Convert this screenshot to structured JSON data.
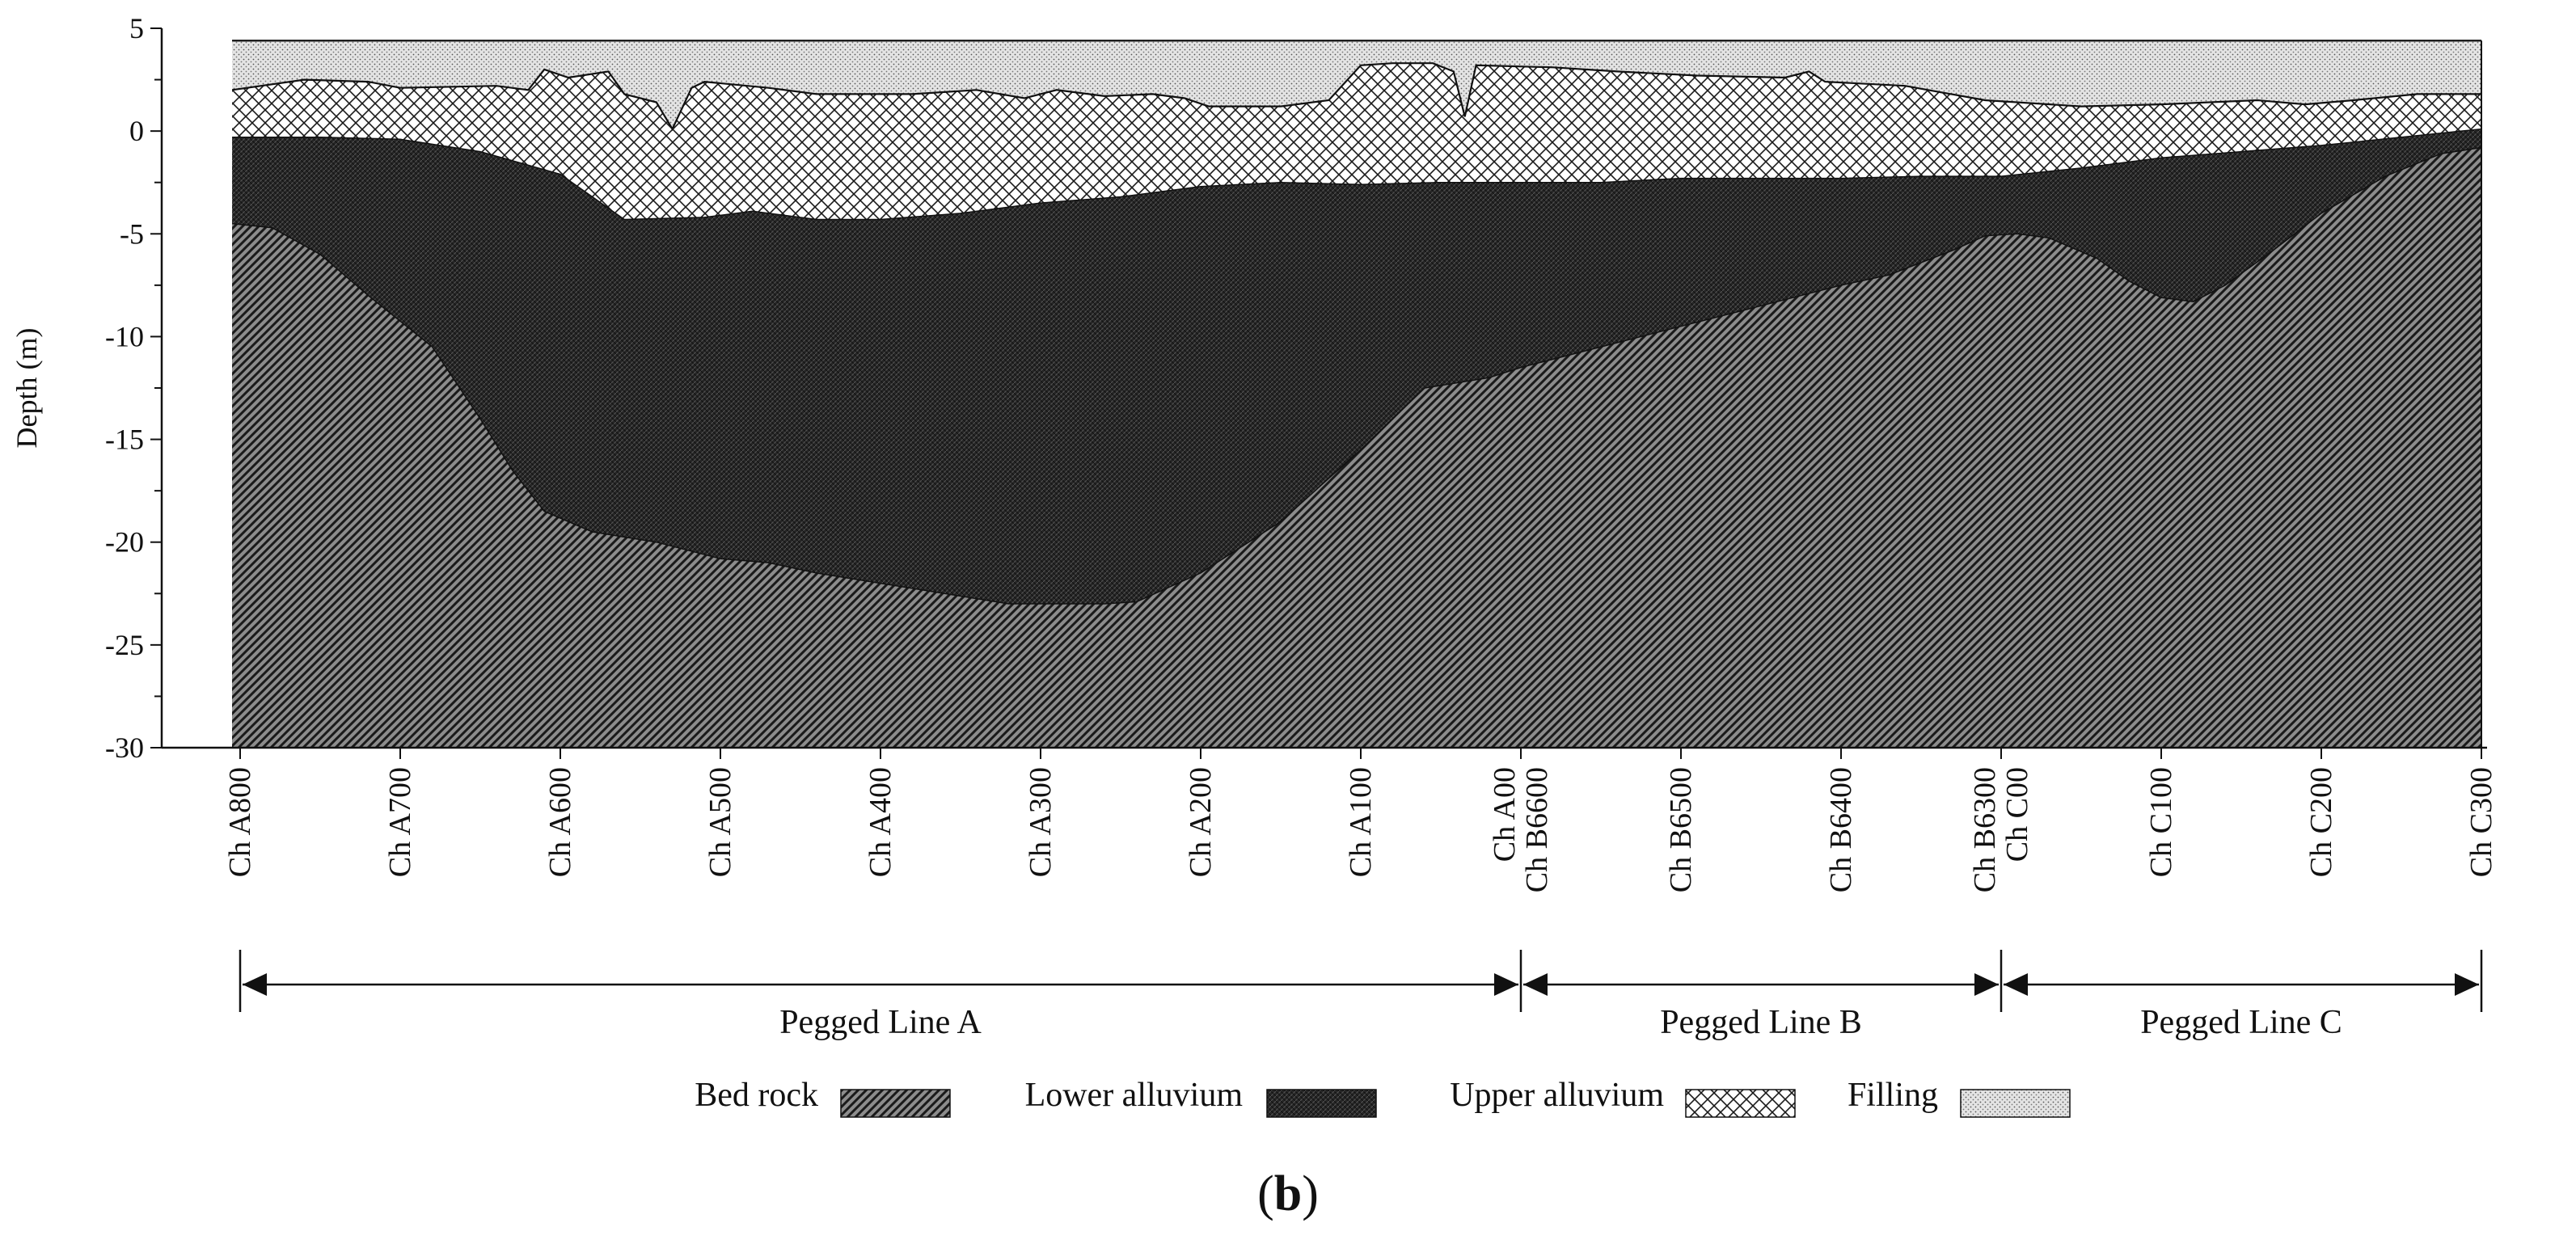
{
  "chart_data": {
    "type": "area",
    "title": "",
    "xlabel": "",
    "ylabel": "Depth (m)",
    "ylim": [
      -30,
      5
    ],
    "ytick_step": 5,
    "y_minor_step": 2.5,
    "xlim": [
      0,
      1400
    ],
    "x_ticks": [
      {
        "x": 0,
        "labels": [
          "Ch A800"
        ]
      },
      {
        "x": 100,
        "labels": [
          "Ch A700"
        ]
      },
      {
        "x": 200,
        "labels": [
          "Ch A600"
        ]
      },
      {
        "x": 300,
        "labels": [
          "Ch A500"
        ]
      },
      {
        "x": 400,
        "labels": [
          "Ch A400"
        ]
      },
      {
        "x": 500,
        "labels": [
          "Ch A300"
        ]
      },
      {
        "x": 600,
        "labels": [
          "Ch A200"
        ]
      },
      {
        "x": 700,
        "labels": [
          "Ch A100"
        ]
      },
      {
        "x": 800,
        "labels": [
          "Ch A00",
          "Ch B6600"
        ]
      },
      {
        "x": 900,
        "labels": [
          "Ch B6500"
        ]
      },
      {
        "x": 1000,
        "labels": [
          "Ch B6400"
        ]
      },
      {
        "x": 1100,
        "labels": [
          "Ch B6300",
          "Ch C00"
        ]
      },
      {
        "x": 1200,
        "labels": [
          "Ch C100"
        ]
      },
      {
        "x": 1300,
        "labels": [
          "Ch C200"
        ]
      },
      {
        "x": 1400,
        "labels": [
          "Ch C300"
        ]
      }
    ],
    "layers": [
      {
        "name": "Filling",
        "boundary": "top_of_filling",
        "fill": "#dcdcdc",
        "pattern": "dots"
      },
      {
        "name": "Upper alluvium",
        "boundary": "top_of_upper_alluvium",
        "fill": "#ffffff",
        "pattern": "crosshatch"
      },
      {
        "name": "Lower alluvium",
        "boundary": "top_of_lower_alluvium",
        "fill": "#262626",
        "pattern": "dense"
      },
      {
        "name": "Bed rock",
        "boundary": "top_of_bed_rock",
        "fill": "#8c8c8c",
        "pattern": "diagonal"
      }
    ],
    "boundaries": {
      "top_of_filling": [
        [
          -5,
          4.4
        ],
        [
          1400,
          4.4
        ]
      ],
      "top_of_upper_alluvium": [
        [
          -5,
          2
        ],
        [
          40,
          2.5
        ],
        [
          80,
          2.4
        ],
        [
          100,
          2.1
        ],
        [
          160,
          2.2
        ],
        [
          180,
          2.0
        ],
        [
          190,
          3.0
        ],
        [
          205,
          2.6
        ],
        [
          230,
          2.9
        ],
        [
          240,
          1.8
        ],
        [
          260,
          1.4
        ],
        [
          270,
          0.1
        ],
        [
          282,
          2.1
        ],
        [
          290,
          2.4
        ],
        [
          330,
          2.1
        ],
        [
          360,
          1.8
        ],
        [
          420,
          1.8
        ],
        [
          460,
          2.0
        ],
        [
          490,
          1.6
        ],
        [
          510,
          2.0
        ],
        [
          540,
          1.7
        ],
        [
          570,
          1.8
        ],
        [
          590,
          1.6
        ],
        [
          605,
          1.2
        ],
        [
          650,
          1.2
        ],
        [
          680,
          1.5
        ],
        [
          700,
          3.2
        ],
        [
          720,
          3.3
        ],
        [
          745,
          3.3
        ],
        [
          758,
          2.9
        ],
        [
          765,
          0.7
        ],
        [
          772,
          3.2
        ],
        [
          820,
          3.1
        ],
        [
          860,
          2.9
        ],
        [
          910,
          2.7
        ],
        [
          965,
          2.6
        ],
        [
          980,
          2.9
        ],
        [
          990,
          2.4
        ],
        [
          1040,
          2.2
        ],
        [
          1090,
          1.5
        ],
        [
          1150,
          1.2
        ],
        [
          1200,
          1.3
        ],
        [
          1260,
          1.5
        ],
        [
          1290,
          1.3
        ],
        [
          1320,
          1.5
        ],
        [
          1360,
          1.8
        ],
        [
          1400,
          1.8
        ]
      ],
      "top_of_lower_alluvium": [
        [
          -5,
          -0.3
        ],
        [
          50,
          -0.3
        ],
        [
          100,
          -0.4
        ],
        [
          150,
          -1.0
        ],
        [
          200,
          -2.1
        ],
        [
          220,
          -3.2
        ],
        [
          240,
          -4.3
        ],
        [
          290,
          -4.2
        ],
        [
          320,
          -3.9
        ],
        [
          360,
          -4.3
        ],
        [
          400,
          -4.3
        ],
        [
          450,
          -4.0
        ],
        [
          500,
          -3.5
        ],
        [
          550,
          -3.2
        ],
        [
          600,
          -2.7
        ],
        [
          650,
          -2.5
        ],
        [
          700,
          -2.6
        ],
        [
          750,
          -2.5
        ],
        [
          800,
          -2.5
        ],
        [
          850,
          -2.5
        ],
        [
          900,
          -2.3
        ],
        [
          950,
          -2.3
        ],
        [
          1000,
          -2.3
        ],
        [
          1050,
          -2.2
        ],
        [
          1100,
          -2.2
        ],
        [
          1150,
          -1.8
        ],
        [
          1200,
          -1.3
        ],
        [
          1250,
          -1.0
        ],
        [
          1300,
          -0.7
        ],
        [
          1350,
          -0.3
        ],
        [
          1400,
          0.1
        ]
      ],
      "top_of_bed_rock": [
        [
          -5,
          -4.5
        ],
        [
          20,
          -4.7
        ],
        [
          50,
          -6
        ],
        [
          80,
          -8
        ],
        [
          120,
          -10.5
        ],
        [
          150,
          -14
        ],
        [
          170,
          -16.5
        ],
        [
          190,
          -18.5
        ],
        [
          220,
          -19.5
        ],
        [
          260,
          -20
        ],
        [
          300,
          -20.8
        ],
        [
          330,
          -21
        ],
        [
          360,
          -21.5
        ],
        [
          400,
          -22
        ],
        [
          440,
          -22.5
        ],
        [
          480,
          -23
        ],
        [
          540,
          -23
        ],
        [
          560,
          -22.9
        ],
        [
          600,
          -21.5
        ],
        [
          650,
          -19
        ],
        [
          700,
          -15.5
        ],
        [
          740,
          -12.5
        ],
        [
          780,
          -12
        ],
        [
          800,
          -11.5
        ],
        [
          850,
          -10.5
        ],
        [
          900,
          -9.5
        ],
        [
          950,
          -8.5
        ],
        [
          1000,
          -7.5
        ],
        [
          1030,
          -7.0
        ],
        [
          1070,
          -5.8
        ],
        [
          1090,
          -5.1
        ],
        [
          1110,
          -5.0
        ],
        [
          1130,
          -5.2
        ],
        [
          1160,
          -6.2
        ],
        [
          1180,
          -7.3
        ],
        [
          1200,
          -8.1
        ],
        [
          1220,
          -8.3
        ],
        [
          1240,
          -7.5
        ],
        [
          1270,
          -5.8
        ],
        [
          1300,
          -4.0
        ],
        [
          1340,
          -2.2
        ],
        [
          1375,
          -1.1
        ],
        [
          1400,
          -0.8
        ]
      ]
    },
    "sections": [
      {
        "name": "Pegged Line A",
        "from": 0,
        "to": 800
      },
      {
        "name": "Pegged Line B",
        "from": 800,
        "to": 1100
      },
      {
        "name": "Pegged Line C",
        "from": 1100,
        "to": 1400
      }
    ],
    "legend": [
      "Bed rock",
      "Lower alluvium",
      "Upper alluvium",
      "Filling"
    ],
    "legend_position": "bottom",
    "caption": "(b)"
  }
}
